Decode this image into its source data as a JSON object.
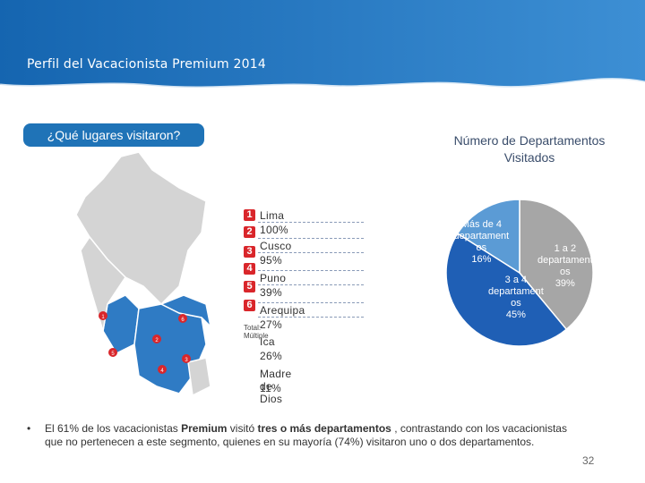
{
  "header": {
    "title": "Perfil del Vacacionista Premium 2014"
  },
  "question": {
    "label": "¿Qué lugares visitaron?"
  },
  "ranking": {
    "items": [
      {
        "num": "1",
        "place": "Lima",
        "pct": "100%"
      },
      {
        "num": "2",
        "place": "Cusco",
        "pct": "95%"
      },
      {
        "num": "3",
        "place": "Puno",
        "pct": "39%"
      },
      {
        "num": "4",
        "place": "Arequipa",
        "pct": "27%"
      },
      {
        "num": "5",
        "place": "Ica",
        "pct": "26%"
      },
      {
        "num": "6",
        "place": "Madre de Dios",
        "pct": "11%"
      }
    ],
    "total_note": "Total: Múltiple"
  },
  "map": {
    "markers": [
      "1",
      "2",
      "3",
      "4",
      "5",
      "6"
    ]
  },
  "chart_data": {
    "type": "pie",
    "title": "Número de Departamentos Visitados",
    "slices": [
      {
        "label": "1 a 2 departamentos",
        "display": [
          "1 a 2",
          "departament",
          "os",
          "39%"
        ],
        "value": 39,
        "color": "#a6a6a6"
      },
      {
        "label": "3 a 4 departamentos",
        "display": [
          "3 a 4",
          "departament",
          "os",
          "45%"
        ],
        "value": 45,
        "color": "#1f5fb5"
      },
      {
        "label": "Más de 4 departamentos",
        "display": [
          "Más de 4",
          "departament",
          "os",
          "16%"
        ],
        "value": 16,
        "color": "#5b9bd5"
      }
    ]
  },
  "footer": {
    "bullet_pre": "El 61% de los vacacionistas ",
    "bullet_bold1": "Premium",
    "bullet_mid": " visitó ",
    "bullet_bold2": "tres o más departamentos",
    "bullet_post": " , contrastando con los vacacionistas que no pertenecen a este segmento, quienes en su mayoría (74%) visitaron uno o dos departamentos.",
    "page_number": "32"
  },
  "colors": {
    "header": "#1f73b7",
    "accent_red": "#d9262b",
    "map_grey": "#d4d4d4",
    "map_blue": "#2f7bc4"
  }
}
